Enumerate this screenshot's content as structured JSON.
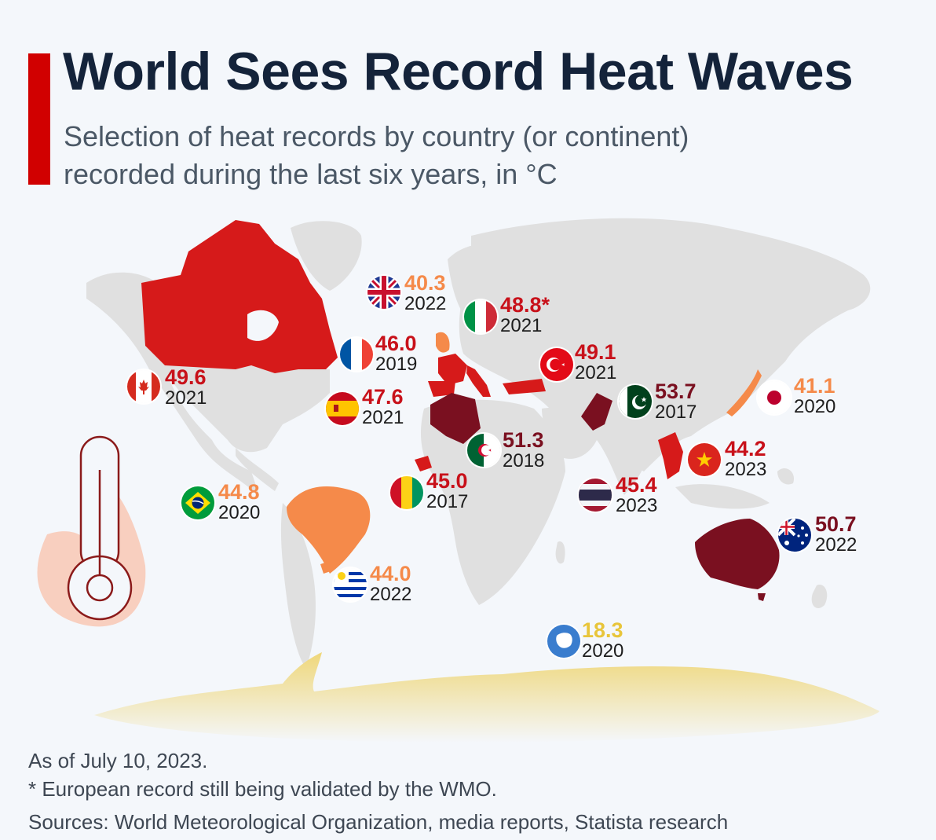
{
  "header": {
    "title": "World Sees Record Heat Waves",
    "subtitle_line1": "Selection of heat records by country (or continent)",
    "subtitle_line2": "recorded during the last six years, in °C"
  },
  "colors": {
    "accent": "#d10000",
    "tier_dark": "#7a1020",
    "tier_red": "#c8111a",
    "tier_orange": "#f58a4a",
    "tier_yellow": "#e8c53a",
    "land": "#e0e0e0"
  },
  "records": [
    {
      "id": "uk",
      "country": "United Kingdom",
      "value": "40.3",
      "year": "2022",
      "tier": "orange"
    },
    {
      "id": "italy",
      "country": "Italy",
      "value": "48.8*",
      "year": "2021",
      "tier": "red"
    },
    {
      "id": "france",
      "country": "France",
      "value": "46.0",
      "year": "2019",
      "tier": "red"
    },
    {
      "id": "turkey",
      "country": "Turkey",
      "value": "49.1",
      "year": "2021",
      "tier": "red"
    },
    {
      "id": "canada",
      "country": "Canada",
      "value": "49.6",
      "year": "2021",
      "tier": "red"
    },
    {
      "id": "spain",
      "country": "Spain",
      "value": "47.6",
      "year": "2021",
      "tier": "red"
    },
    {
      "id": "pakistan",
      "country": "Pakistan",
      "value": "53.7",
      "year": "2017",
      "tier": "dark"
    },
    {
      "id": "japan",
      "country": "Japan",
      "value": "41.1",
      "year": "2020",
      "tier": "orange"
    },
    {
      "id": "algeria",
      "country": "Algeria",
      "value": "51.3",
      "year": "2018",
      "tier": "dark"
    },
    {
      "id": "vietnam",
      "country": "Vietnam",
      "value": "44.2",
      "year": "2023",
      "tier": "red"
    },
    {
      "id": "brazil",
      "country": "Brazil",
      "value": "44.8",
      "year": "2020",
      "tier": "orange"
    },
    {
      "id": "guinea",
      "country": "Guinea",
      "value": "45.0",
      "year": "2017",
      "tier": "red"
    },
    {
      "id": "thailand",
      "country": "Thailand",
      "value": "45.4",
      "year": "2023",
      "tier": "red"
    },
    {
      "id": "australia",
      "country": "Australia",
      "value": "50.7",
      "year": "2022",
      "tier": "dark"
    },
    {
      "id": "uruguay",
      "country": "Uruguay",
      "value": "44.0",
      "year": "2022",
      "tier": "orange"
    },
    {
      "id": "antarctica",
      "country": "Antarctica",
      "value": "18.3",
      "year": "2020",
      "tier": "yellow"
    }
  ],
  "footer": {
    "asof": "As of July 10, 2023.",
    "note": "* European record still being validated by the WMO.",
    "sources": "Sources: World Meteorological Organization, media reports, Statista research"
  }
}
